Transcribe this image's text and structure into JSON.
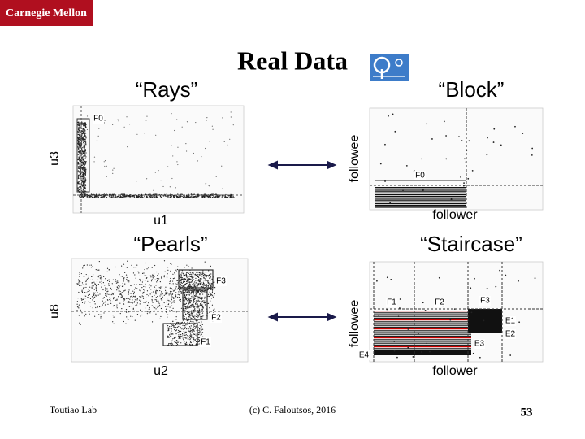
{
  "header": {
    "logo": "Carnegie Mellon",
    "title": "Real Data"
  },
  "panels": [
    {
      "label": "“Rays”",
      "x_label": "u1",
      "y_label": "u3",
      "annotations": [
        "F0"
      ]
    },
    {
      "label": "“Block”",
      "x_label": "follower",
      "y_label": "followee",
      "annotations": [
        "F0"
      ]
    },
    {
      "label": "“Pearls”",
      "x_label": "u2",
      "y_label": "u8",
      "annotations": [
        "F3",
        "F2",
        "F1"
      ]
    },
    {
      "label": "“Staircase”",
      "x_label": "follower",
      "y_label": "followee",
      "annotations": [
        "F1",
        "F2",
        "F3",
        "E1",
        "E2",
        "E3",
        "E4"
      ]
    }
  ],
  "footer": {
    "left": "Toutiao Lab",
    "center": "(c) C. Faloutsos, 2016",
    "page": "53"
  }
}
